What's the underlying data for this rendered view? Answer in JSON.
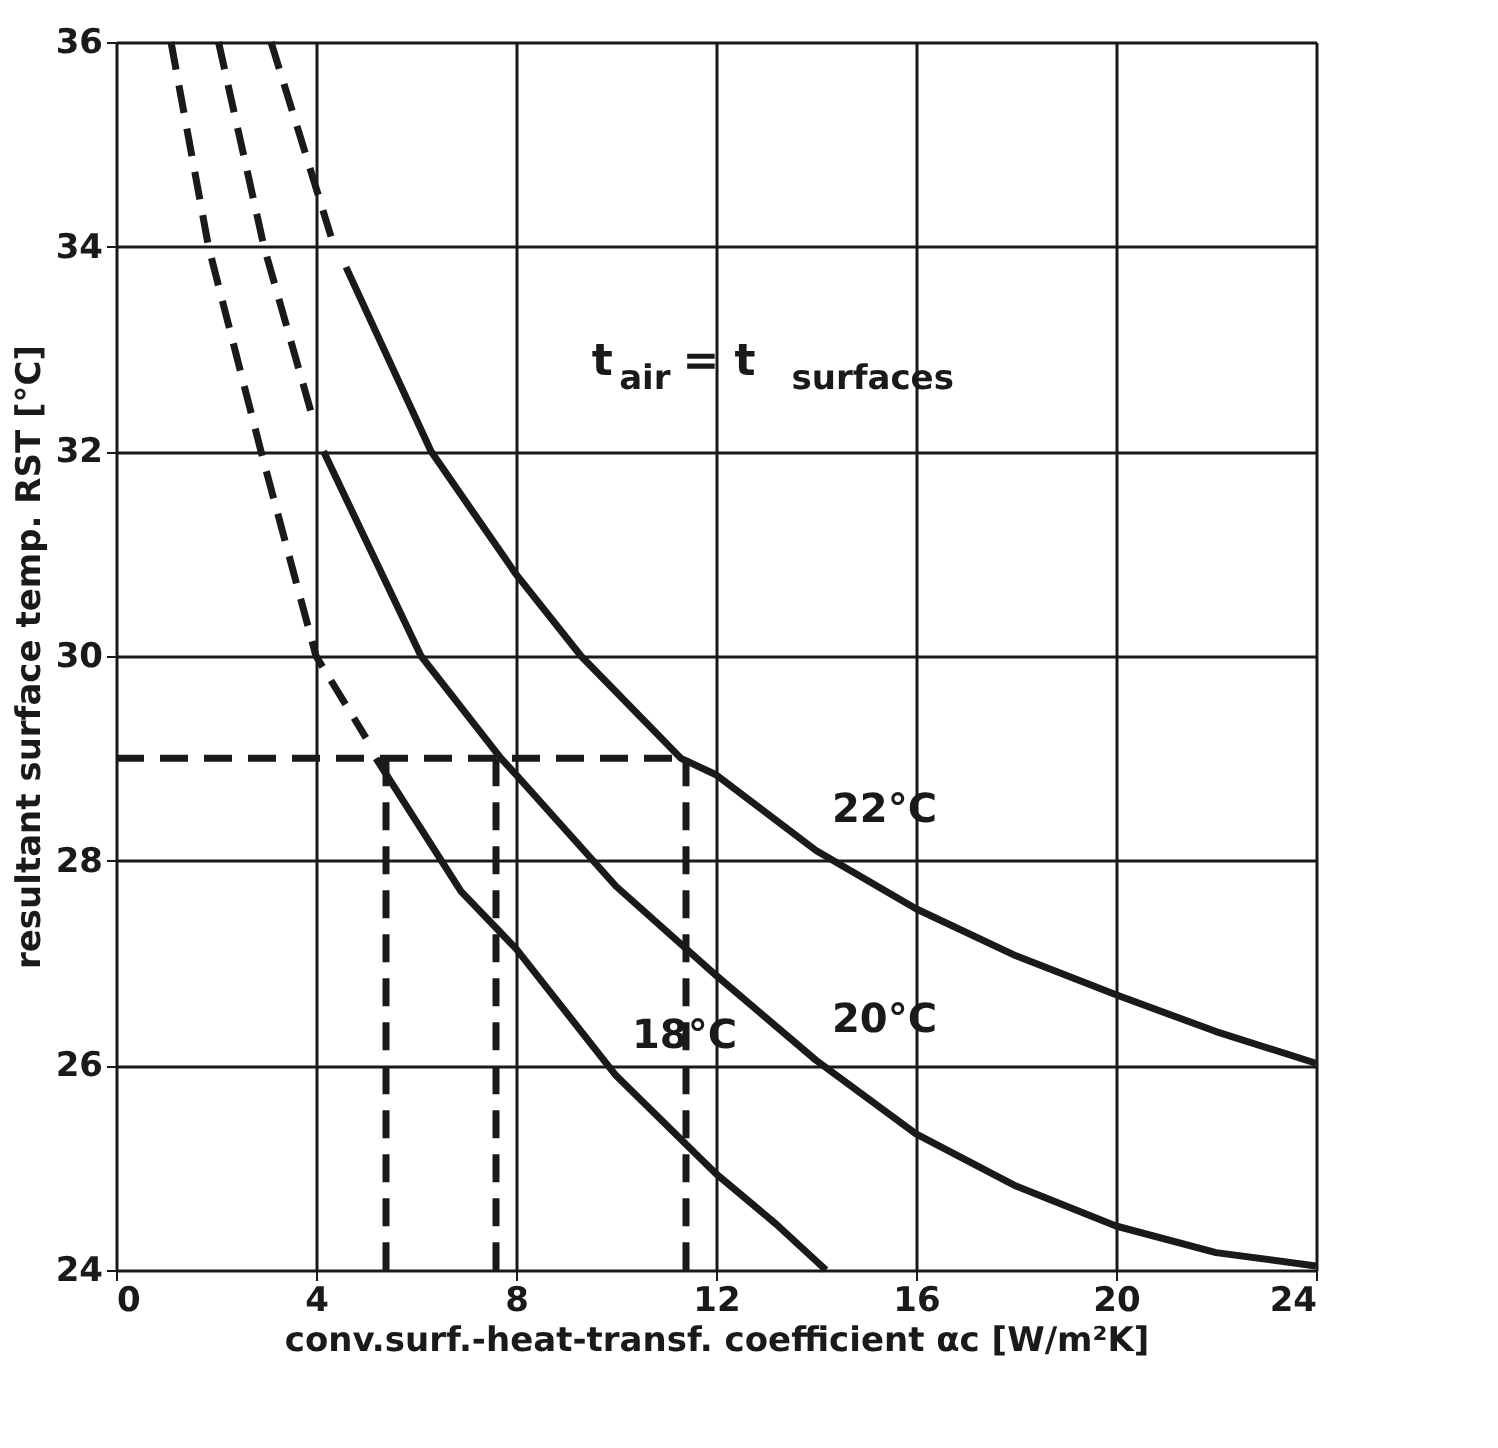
{
  "chart_data": {
    "type": "line",
    "xlabel": "conv.surf.-heat-transf. coefficient αc [W/m²K]",
    "ylabel": "resultant surface temp.    RST  [°C]",
    "xlim": [
      0,
      24
    ],
    "xticks": [
      0,
      4,
      8,
      12,
      16,
      20,
      24
    ],
    "ylim": [
      24,
      36
    ],
    "yticks": [
      24,
      26,
      28,
      30,
      32,
      34,
      36
    ],
    "grid": true,
    "marker": "none",
    "series": [
      {
        "color": "#1a1a1a",
        "line_style": "dashed",
        "x": [
          1.1,
          1.85,
          2.9,
          4.0,
          5.0
        ],
        "values": [
          36,
          34,
          32,
          30,
          29.2
        ]
      },
      {
        "name": "18°C",
        "color": "#1a1a1a",
        "line_style": "solid",
        "x": [
          5.2,
          6.9,
          8,
          10,
          12,
          13.2,
          14.2
        ],
        "values": [
          29,
          27.7,
          27.14,
          25.9,
          24.94,
          24.45,
          24
        ]
      },
      {
        "color": "#1a1a1a",
        "line_style": "dashed",
        "x": [
          2.05,
          2.96,
          3.95
        ],
        "values": [
          36,
          34,
          32.3
        ]
      },
      {
        "name": "20°C",
        "color": "#1a1a1a",
        "line_style": "solid",
        "x": [
          4.15,
          6.1,
          7.7,
          8,
          10,
          12,
          14,
          16,
          18,
          20,
          22,
          24
        ],
        "values": [
          32,
          30,
          29,
          28.84,
          27.75,
          26.88,
          26.05,
          25.33,
          24.82,
          24.43,
          24.17,
          24.04
        ]
      },
      {
        "color": "#1a1a1a",
        "line_style": "dashed",
        "x": [
          3.1,
          4.3
        ],
        "values": [
          36,
          34.1
        ]
      },
      {
        "name": "22°C",
        "color": "#1a1a1a",
        "line_style": "solid",
        "x": [
          4.6,
          6.3,
          8,
          9.3,
          11.3,
          12,
          14,
          16,
          18,
          20,
          22,
          24
        ],
        "values": [
          33.8,
          32,
          30.8,
          30,
          29,
          28.84,
          28.1,
          27.53,
          27.07,
          26.69,
          26.33,
          26.02
        ]
      },
      {
        "color": "#1a1a1a",
        "line_style": "dashed",
        "x": [
          0,
          11.4
        ],
        "values": [
          29,
          29
        ]
      },
      {
        "color": "#1a1a1a",
        "line_style": "dashed",
        "x": [
          5.4,
          5.4
        ],
        "values": [
          29,
          24
        ]
      },
      {
        "color": "#1a1a1a",
        "line_style": "dashed",
        "x": [
          7.6,
          7.6
        ],
        "values": [
          29,
          24
        ]
      },
      {
        "color": "#1a1a1a",
        "line_style": "dashed",
        "x": [
          11.4,
          11.4
        ],
        "values": [
          29,
          24
        ]
      }
    ],
    "annotations": [
      "t$_{air}$ = t$_{surfaces}$"
    ]
  }
}
